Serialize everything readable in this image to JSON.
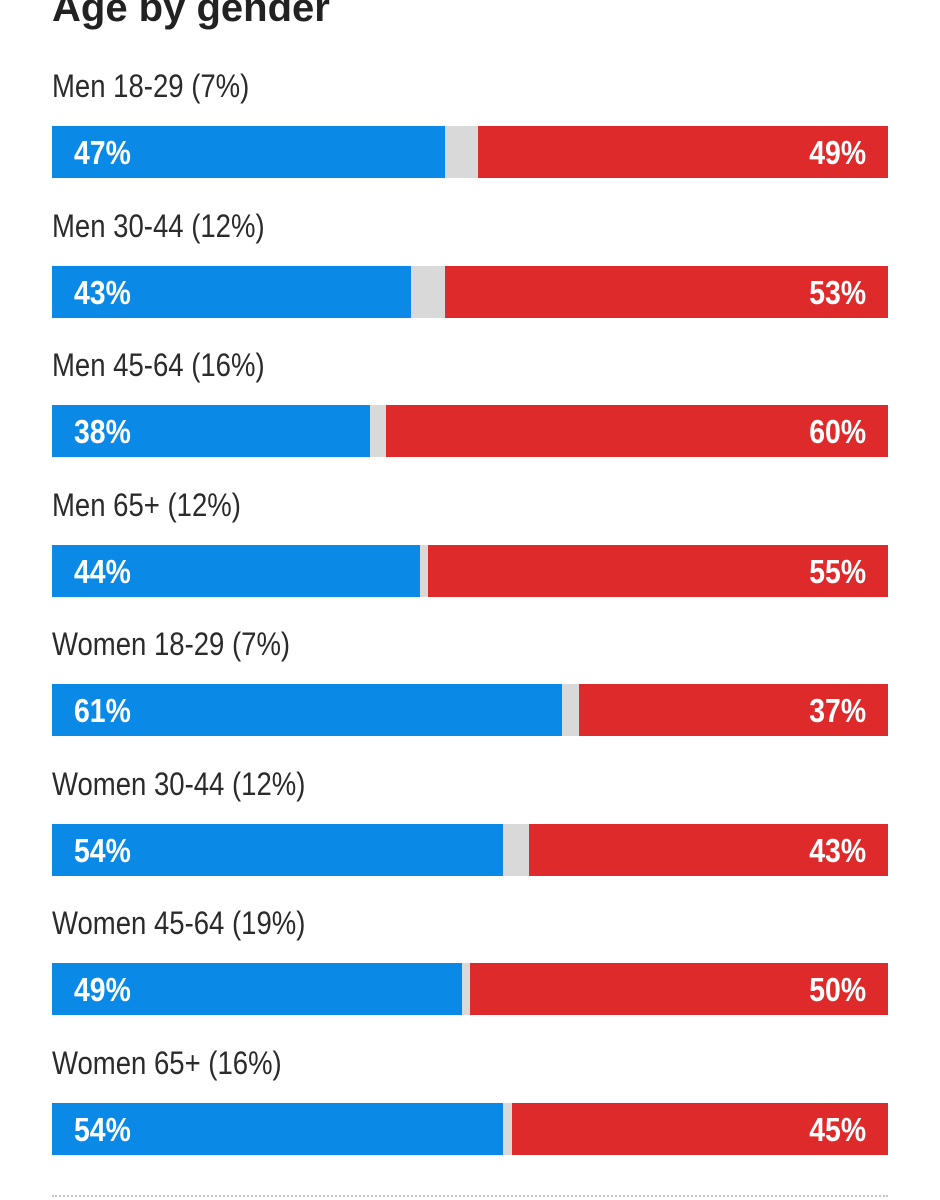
{
  "title": "Age by gender",
  "colors": {
    "dem": "#0a89e6",
    "rep": "#df2a2b",
    "other": "#d9d9d9"
  },
  "rows": [
    {
      "label": "Men 18-29 (7%)",
      "dem_label": "47%",
      "rep_label": "49%"
    },
    {
      "label": "Men 30-44 (12%)",
      "dem_label": "43%",
      "rep_label": "53%"
    },
    {
      "label": "Men 45-64 (16%)",
      "dem_label": "38%",
      "rep_label": "60%"
    },
    {
      "label": "Men 65+ (12%)",
      "dem_label": "44%",
      "rep_label": "55%"
    },
    {
      "label": "Women 18-29 (7%)",
      "dem_label": "61%",
      "rep_label": "37%"
    },
    {
      "label": "Women 30-44 (12%)",
      "dem_label": "54%",
      "rep_label": "43%"
    },
    {
      "label": "Women 45-64 (19%)",
      "dem_label": "49%",
      "rep_label": "50%"
    },
    {
      "label": "Women 65+ (16%)",
      "dem_label": "54%",
      "rep_label": "45%"
    }
  ],
  "chart_data": {
    "type": "bar",
    "orientation": "horizontal-stacked",
    "title": "Age by gender",
    "categories": [
      "Men 18-29 (7%)",
      "Men 30-44 (12%)",
      "Men 45-64 (16%)",
      "Men 65+ (12%)",
      "Women 18-29 (7%)",
      "Women 30-44 (12%)",
      "Women 45-64 (19%)",
      "Women 65+ (16%)"
    ],
    "series": [
      {
        "values": [
          47,
          43,
          38,
          44,
          61,
          54,
          49,
          54
        ],
        "color": "#0a89e6"
      },
      {
        "values": [
          49,
          53,
          60,
          55,
          37,
          43,
          50,
          45
        ],
        "color": "#df2a2b"
      }
    ],
    "xlim": [
      0,
      100
    ],
    "grid": false
  }
}
